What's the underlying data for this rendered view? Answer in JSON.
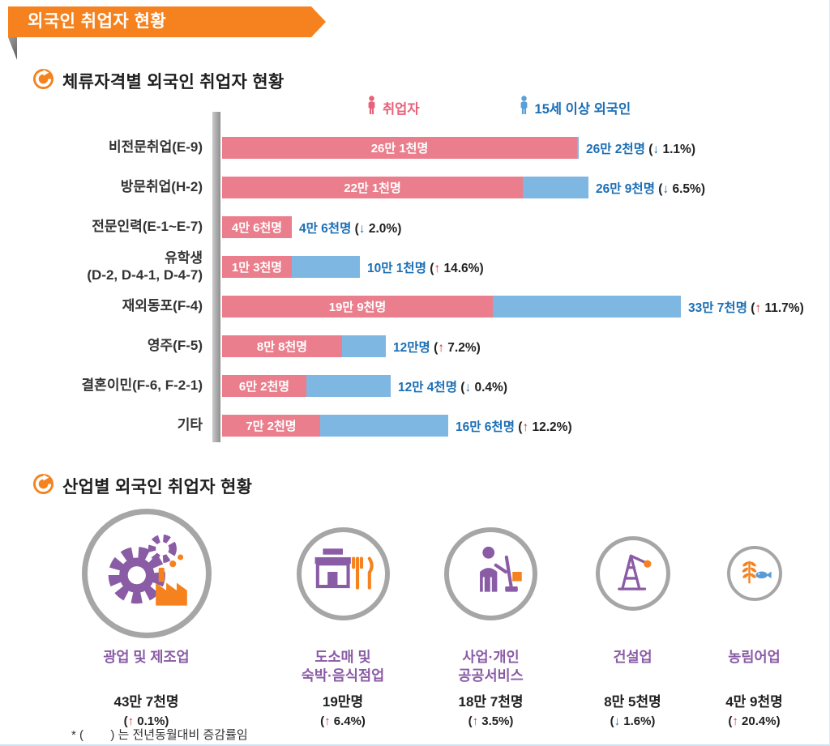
{
  "banner": {
    "title": "외국인 취업자 현황"
  },
  "section1": {
    "title": "체류자격별 외국인 취업자 현황",
    "legend": [
      {
        "label": "취업자",
        "color": "#E8617A"
      },
      {
        "label": "15세 이상 외국인",
        "color": "#1C6FB5"
      }
    ],
    "chart_data": {
      "type": "bar",
      "orientation": "horizontal",
      "series_names": [
        "취업자",
        "15세 이상 외국인"
      ],
      "unit": "만명",
      "xlim": [
        0,
        34
      ],
      "rows": [
        {
          "category_lines": [
            "비전문취업(E-9)"
          ],
          "employed_10k": 26.1,
          "employed_label": "26만 1천명",
          "total_10k": 26.2,
          "total_label": "26만 2천명",
          "direction": "down",
          "change_pct": "1.1%"
        },
        {
          "category_lines": [
            "방문취업(H-2)"
          ],
          "employed_10k": 22.1,
          "employed_label": "22만 1천명",
          "total_10k": 26.9,
          "total_label": "26만 9천명",
          "direction": "down",
          "change_pct": "6.5%"
        },
        {
          "category_lines": [
            "전문인력(E-1~E-7)"
          ],
          "employed_10k": 4.6,
          "employed_label": "4만 6천명",
          "total_10k": 4.6,
          "total_label": "4만 6천명",
          "direction": "down",
          "change_pct": "2.0%"
        },
        {
          "category_lines": [
            "유학생",
            "(D-2, D-4-1, D-4-7)"
          ],
          "employed_10k": 1.3,
          "employed_label": "1만 3천명",
          "total_10k": 10.1,
          "total_label": "10만 1천명",
          "direction": "up",
          "change_pct": "14.6%"
        },
        {
          "category_lines": [
            "재외동포(F-4)"
          ],
          "employed_10k": 19.9,
          "employed_label": "19만 9천명",
          "total_10k": 33.7,
          "total_label": "33만 7천명",
          "direction": "up",
          "change_pct": "11.7%"
        },
        {
          "category_lines": [
            "영주(F-5)"
          ],
          "employed_10k": 8.8,
          "employed_label": "8만 8천명",
          "total_10k": 12.0,
          "total_label": "12만명",
          "direction": "up",
          "change_pct": "7.2%"
        },
        {
          "category_lines": [
            "결혼이민(F-6, F-2-1)"
          ],
          "employed_10k": 6.2,
          "employed_label": "6만 2천명",
          "total_10k": 12.4,
          "total_label": "12만 4천명",
          "direction": "down",
          "change_pct": "0.4%"
        },
        {
          "category_lines": [
            "기타"
          ],
          "employed_10k": 7.2,
          "employed_label": "7만 2천명",
          "total_10k": 16.6,
          "total_label": "16만 6천명",
          "direction": "up",
          "change_pct": "12.2%"
        }
      ]
    }
  },
  "section2": {
    "title": "산업별 외국인 취업자 현황",
    "industries": [
      {
        "name_lines": [
          "광업 및 제조업"
        ],
        "value_label": "43만 7천명",
        "value_10k": 43.7,
        "direction": "up",
        "change_pct": "0.1%",
        "icon": "gear-factory-icon"
      },
      {
        "name_lines": [
          "도소매 및",
          "숙박·음식점업"
        ],
        "value_label": "19만명",
        "value_10k": 19.0,
        "direction": "up",
        "change_pct": "6.4%",
        "icon": "store-food-icon"
      },
      {
        "name_lines": [
          "사업·개인",
          "공공서비스"
        ],
        "value_label": "18만 7천명",
        "value_10k": 18.7,
        "direction": "up",
        "change_pct": "3.5%",
        "icon": "cleaning-person-icon"
      },
      {
        "name_lines": [
          "건설업"
        ],
        "value_label": "8만 5천명",
        "value_10k": 8.5,
        "direction": "down",
        "change_pct": "1.6%",
        "icon": "derrick-icon"
      },
      {
        "name_lines": [
          "농림어업"
        ],
        "value_label": "4만 9천명",
        "value_10k": 4.9,
        "direction": "up",
        "change_pct": "20.4%",
        "icon": "wheat-fish-icon"
      }
    ]
  },
  "footnote": "* (        ) 는 전년동월대비 증감률임",
  "colors": {
    "accent_orange": "#F5821E",
    "bar_pink": "#EA7E8C",
    "bar_blue": "#7FB7E3",
    "text_blue": "#1C6FB5",
    "arrow_red": "#D7382E",
    "icon_purple": "#8A5CA5",
    "ring_gray": "#A6A6A6"
  }
}
